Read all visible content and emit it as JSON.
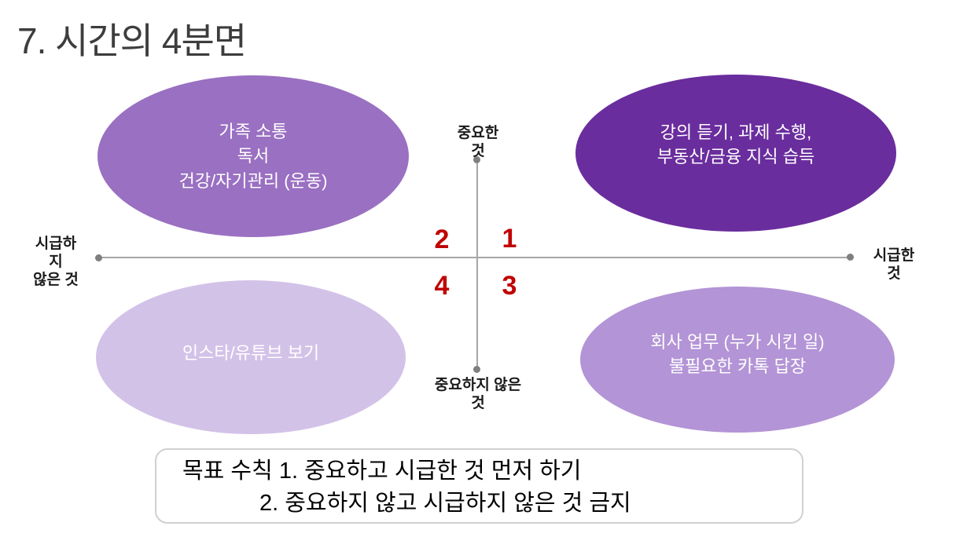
{
  "slide": {
    "title": "7. 시간의 4분면"
  },
  "axis": {
    "top": [
      "중요한",
      "것"
    ],
    "bottom": [
      "중요하지 않은",
      "것"
    ],
    "left": [
      "시급하",
      "지",
      "않은 것"
    ],
    "right": [
      "시급한",
      "것"
    ]
  },
  "quadrants": {
    "top_left": {
      "number": "2",
      "color": "#9a70c2",
      "lines": [
        "가족 소통",
        "독서",
        "건강/자기관리 (운동)"
      ]
    },
    "top_right": {
      "number": "1",
      "color": "#6a2d9e",
      "lines": [
        "강의 듣기, 과제 수행,",
        "부동산/금융 지식 습득"
      ]
    },
    "bottom_left": {
      "number": "4",
      "color": "#d3c2e8",
      "lines": [
        "인스타/유튜브 보기"
      ]
    },
    "bottom_right": {
      "number": "3",
      "color": "#b394d6",
      "lines": [
        "회사 업무 (누가 시킨 일)",
        "불필요한 카톡 답장"
      ]
    }
  },
  "rules_box": {
    "line1": "목표 수칙 1. 중요하고 시급한 것 먼저 하기",
    "line2": "2. 중요하지 않고 시급하지 않은 것 금지"
  },
  "colors": {
    "number_red": "#c00000",
    "axis_line": "#a6a6a6",
    "axis_dot": "#7f7f7f",
    "box_border": "#d0d0d0",
    "title_text": "#3d3d3d"
  }
}
